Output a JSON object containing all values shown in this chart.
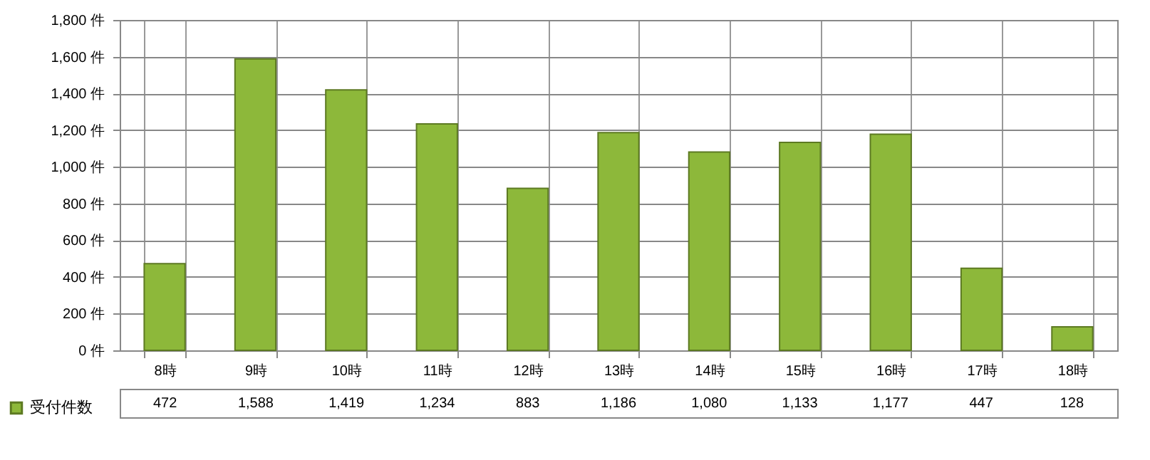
{
  "chart_data": {
    "type": "bar",
    "categories": [
      "8時",
      "9時",
      "10時",
      "11時",
      "12時",
      "13時",
      "14時",
      "15時",
      "16時",
      "17時",
      "18時"
    ],
    "series": [
      {
        "name": "受付件数",
        "color": "#8db83a",
        "values": [
          472,
          1588,
          1419,
          1234,
          883,
          1186,
          1080,
          1133,
          1177,
          447,
          128
        ],
        "value_labels": [
          "472",
          "1,588",
          "1,419",
          "1,234",
          "883",
          "1,186",
          "1,080",
          "1,133",
          "1,177",
          "447",
          "128"
        ]
      }
    ],
    "ylim": [
      0,
      1800
    ],
    "yticks": [
      {
        "value": 0,
        "label": "0 件"
      },
      {
        "value": 200,
        "label": "200 件"
      },
      {
        "value": 400,
        "label": "400 件"
      },
      {
        "value": 600,
        "label": "600 件"
      },
      {
        "value": 800,
        "label": "800 件"
      },
      {
        "value": 1000,
        "label": "1,000 件"
      },
      {
        "value": 1200,
        "label": "1,200 件"
      },
      {
        "value": 1400,
        "label": "1,400 件"
      },
      {
        "value": 1600,
        "label": "1,600 件"
      },
      {
        "value": 1800,
        "label": "1,800 件"
      }
    ],
    "grid": "y",
    "legend": "bottom left"
  }
}
